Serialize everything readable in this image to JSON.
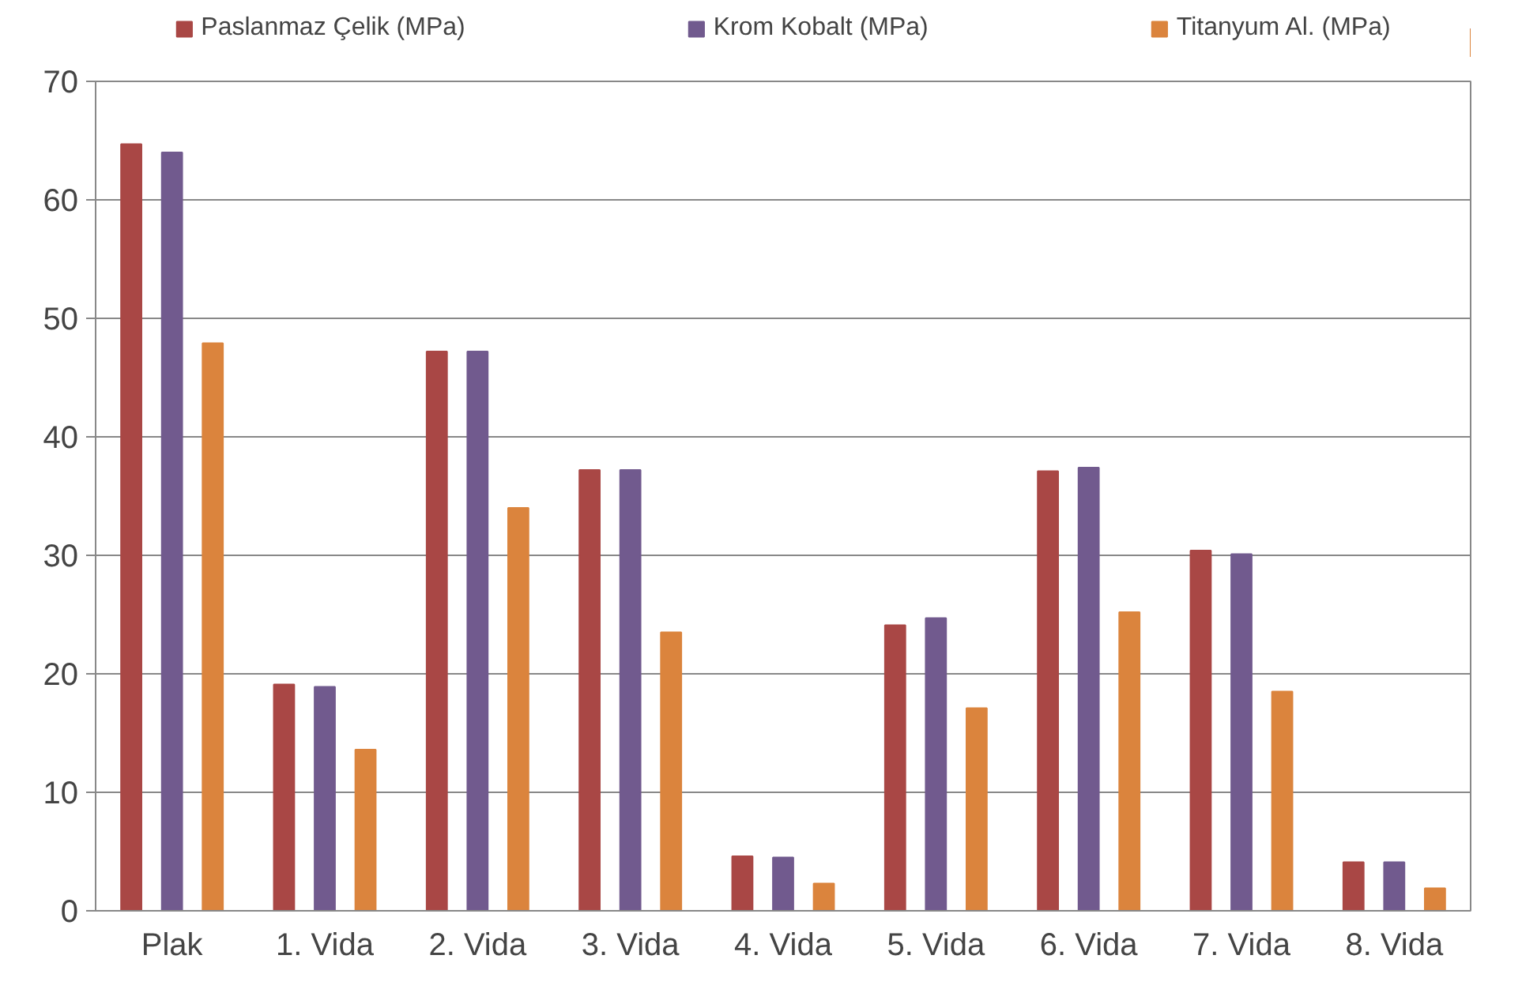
{
  "chart_data": {
    "type": "bar",
    "categories": [
      "Plak",
      "1. Vida",
      "2. Vida",
      "3. Vida",
      "4. Vida",
      "5. Vida",
      "6. Vida",
      "7. Vida",
      "8. Vida"
    ],
    "series": [
      {
        "name": "Paslanmaz Çelik (MPa)",
        "color": "#a94745",
        "values": [
          64.7,
          19.1,
          47.2,
          37.2,
          4.6,
          24.1,
          37.1,
          30.4,
          4.1
        ]
      },
      {
        "name": "Krom Kobalt (MPa)",
        "color": "#715a8e",
        "values": [
          64.0,
          18.9,
          47.2,
          37.2,
          4.5,
          24.7,
          37.4,
          30.1,
          4.1
        ]
      },
      {
        "name": "Titanyum Al. (MPa)",
        "color": "#db843d",
        "values": [
          47.9,
          13.6,
          34.0,
          23.5,
          2.3,
          17.1,
          25.2,
          18.5,
          1.9
        ]
      }
    ],
    "ylim": [
      0,
      70
    ],
    "yticks": [
      0,
      10,
      20,
      30,
      40,
      50,
      60,
      70
    ],
    "grid": "y",
    "legend": "top"
  }
}
